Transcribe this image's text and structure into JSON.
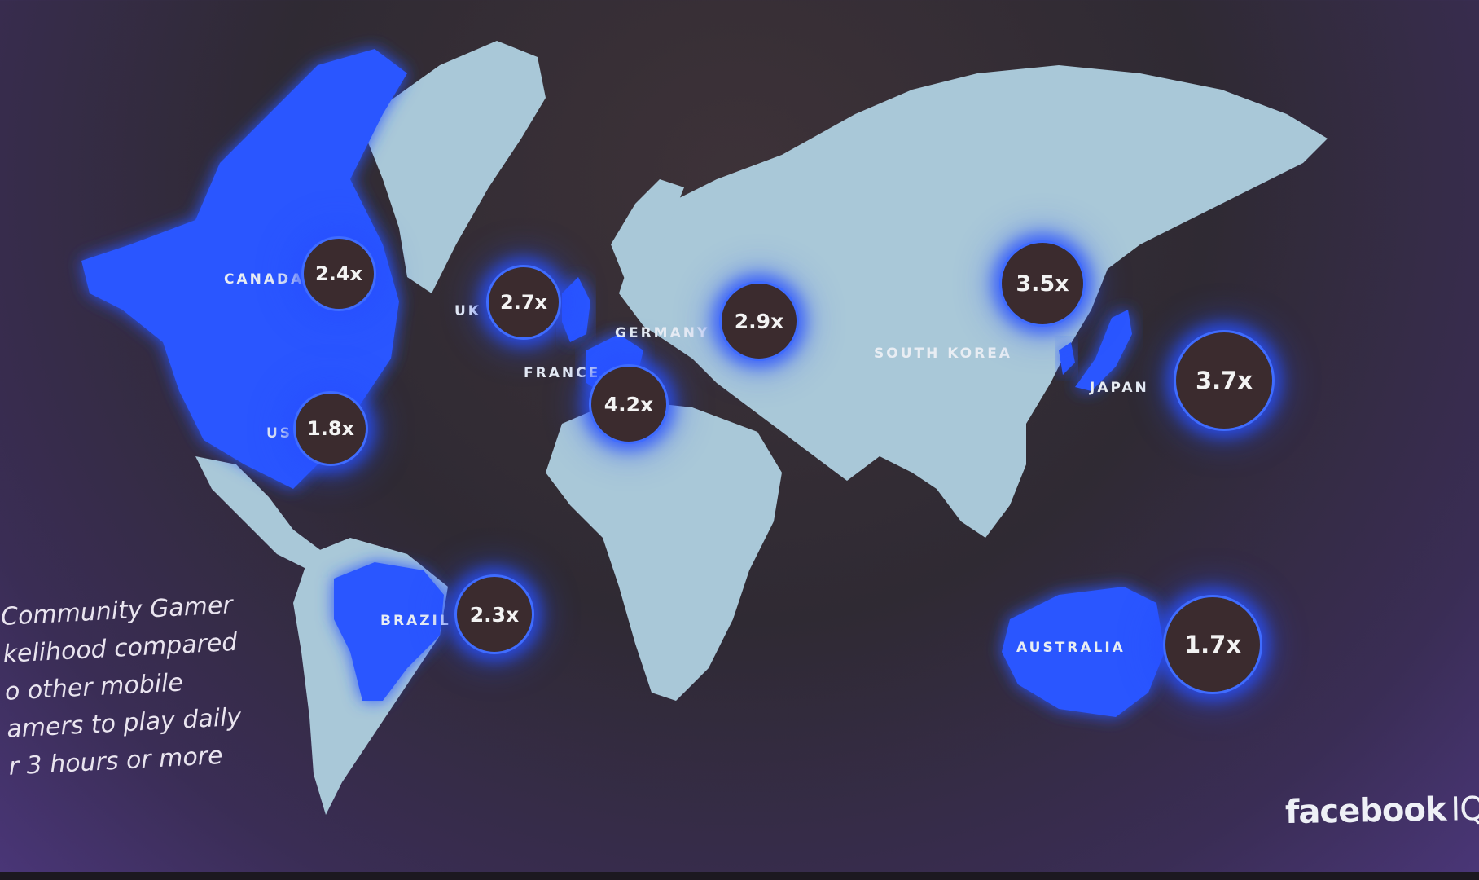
{
  "legend_lines": [
    "Community Gamer",
    "kelihood compared",
    "o other mobile",
    "amers to play daily",
    "r 3 hours or more"
  ],
  "brand": {
    "name": "facebook",
    "suffix": "IQ"
  },
  "colors": {
    "land": "#a9c8d8",
    "highlight": "#2a56ff",
    "bubble": "#3b2b2e",
    "bubble_ring": "#3f6cff"
  },
  "countries": [
    {
      "name": "CANADA",
      "value": "2.4x"
    },
    {
      "name": "US",
      "value": "1.8x"
    },
    {
      "name": "UK",
      "value": "2.7x"
    },
    {
      "name": "FRANCE",
      "value": "4.2x"
    },
    {
      "name": "GERMANY",
      "value": "2.9x"
    },
    {
      "name": "BRAZIL",
      "value": "2.3x"
    },
    {
      "name": "SOUTH KOREA",
      "value": "3.5x"
    },
    {
      "name": "JAPAN",
      "value": "3.7x"
    },
    {
      "name": "AUSTRALIA",
      "value": "1.7x"
    }
  ]
}
